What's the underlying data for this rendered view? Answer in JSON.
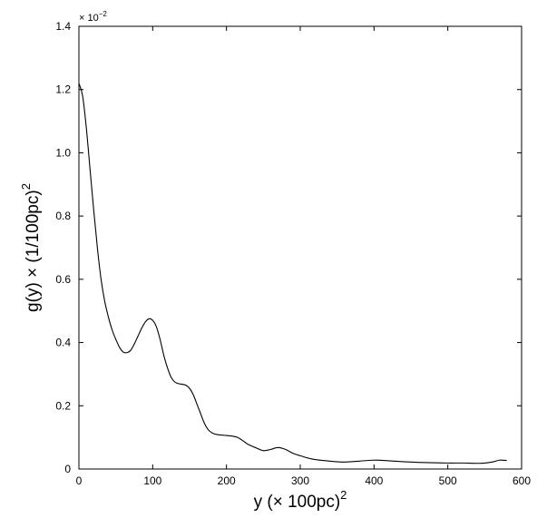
{
  "chart_data": {
    "type": "line",
    "xlabel_base": "y (× 100pc)",
    "xlabel_exp": "2",
    "ylabel_base": "g(y) × (1/100pc)",
    "ylabel_exp": "2",
    "y_multiplier_base": "× 10",
    "y_multiplier_exp": "−2",
    "xlim": [
      0,
      600
    ],
    "ylim": [
      0,
      1.4
    ],
    "x_ticks": [
      0,
      100,
      200,
      300,
      400,
      500,
      600
    ],
    "y_ticks": [
      0,
      0.2,
      0.4,
      0.6,
      0.8,
      1.0,
      1.2,
      1.4
    ],
    "x_tick_labels": [
      "0",
      "100",
      "200",
      "300",
      "400",
      "500",
      "600"
    ],
    "y_tick_labels": [
      "0",
      "0.2",
      "0.4",
      "0.6",
      "0.8",
      "1.0",
      "1.2",
      "1.4"
    ],
    "grid": false,
    "series": [
      {
        "color": "#000000",
        "x": [
          0,
          5,
          10,
          15,
          20,
          25,
          30,
          35,
          40,
          45,
          50,
          55,
          60,
          65,
          70,
          75,
          80,
          85,
          90,
          95,
          100,
          105,
          110,
          115,
          120,
          125,
          130,
          135,
          140,
          145,
          150,
          155,
          160,
          165,
          170,
          175,
          180,
          185,
          190,
          195,
          200,
          205,
          210,
          215,
          220,
          225,
          230,
          240,
          250,
          260,
          270,
          280,
          290,
          300,
          310,
          320,
          340,
          360,
          380,
          400,
          420,
          440,
          460,
          480,
          500,
          520,
          545,
          560,
          570,
          580
        ],
        "y": [
          1.22,
          1.18,
          1.08,
          0.95,
          0.82,
          0.7,
          0.6,
          0.53,
          0.48,
          0.44,
          0.41,
          0.385,
          0.37,
          0.368,
          0.375,
          0.395,
          0.42,
          0.445,
          0.465,
          0.475,
          0.47,
          0.45,
          0.41,
          0.36,
          0.32,
          0.29,
          0.275,
          0.27,
          0.268,
          0.265,
          0.255,
          0.235,
          0.205,
          0.175,
          0.145,
          0.125,
          0.115,
          0.11,
          0.108,
          0.107,
          0.106,
          0.105,
          0.103,
          0.1,
          0.093,
          0.085,
          0.077,
          0.067,
          0.058,
          0.062,
          0.068,
          0.062,
          0.05,
          0.042,
          0.035,
          0.03,
          0.025,
          0.022,
          0.025,
          0.028,
          0.026,
          0.023,
          0.021,
          0.02,
          0.019,
          0.019,
          0.018,
          0.022,
          0.028,
          0.027
        ]
      }
    ]
  }
}
